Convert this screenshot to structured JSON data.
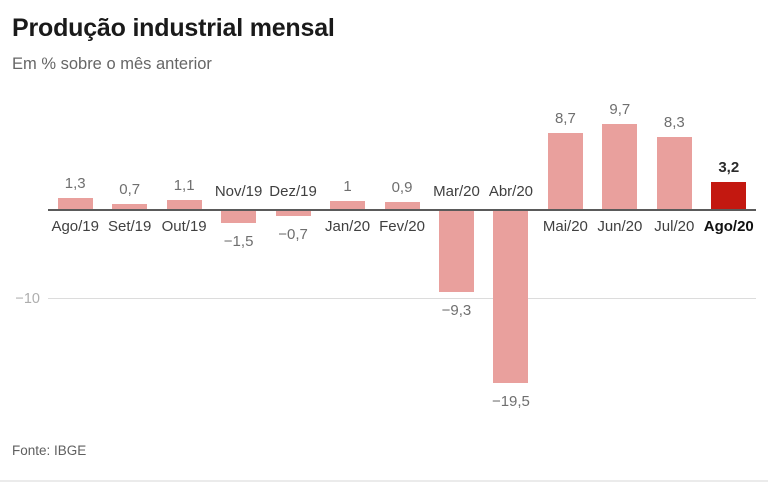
{
  "header": {
    "title": "Produção industrial mensal",
    "subtitle": "Em % sobre o mês anterior"
  },
  "footer": {
    "source": "Fonte: IBGE"
  },
  "colors": {
    "bar": "#e9a09d",
    "bar_highlight": "#c31810",
    "axis": "#5a5a5a",
    "gridline": "#dcdcdc",
    "value_label": "#6f6f6f",
    "category_label": "#404040",
    "tick_label": "#aeaeae",
    "title": "#1a1a1a",
    "subtitle": "#666666"
  },
  "chart_data": {
    "type": "bar",
    "title": "Produção industrial mensal",
    "subtitle": "Em % sobre o mês anterior",
    "xlabel": "",
    "ylabel": "Em % sobre o mês anterior",
    "categories": [
      "Ago/19",
      "Set/19",
      "Out/19",
      "Nov/19",
      "Dez/19",
      "Jan/20",
      "Fev/20",
      "Mar/20",
      "Abr/20",
      "Mai/20",
      "Jun/20",
      "Jul/20",
      "Ago/20"
    ],
    "values": [
      1.3,
      0.7,
      1.1,
      -1.5,
      -0.7,
      1,
      0.9,
      -9.3,
      -19.5,
      8.7,
      9.7,
      8.3,
      3.2
    ],
    "value_labels": [
      "1,3",
      "0,7",
      "1,1",
      "−1,5",
      "−0,7",
      "1",
      "0,9",
      "−9,3",
      "−19,5",
      "8,7",
      "9,7",
      "8,3",
      "3,2"
    ],
    "highlight_index": 12,
    "highlight_category": "Ago/20",
    "ylim": [
      -22,
      11
    ],
    "y_gridlines": [
      {
        "value": -10,
        "label": "−10"
      }
    ],
    "legend": "none",
    "grid": "single horizontal gridline at -10; dark baseline at 0",
    "source": "Fonte: IBGE"
  }
}
